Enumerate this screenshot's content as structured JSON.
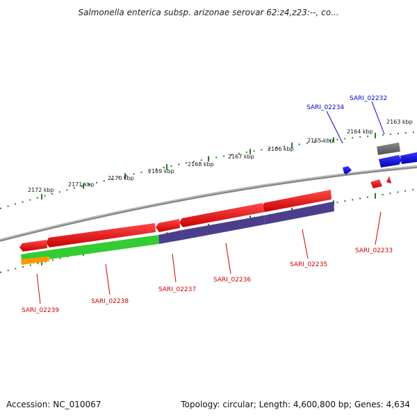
{
  "title": "Salmonella enterica subsp. arizonae serovar 62:z4,z23:--, co...",
  "footer": {
    "accession": "Accession: NC_010067",
    "summary": "Topology: circular; Length: 4,600,800 bp; Genes: 4,634"
  },
  "ticks": [
    "2163 kbp",
    "2164 kbp",
    "2165 kbp",
    "2166 kbp",
    "2167 kbp",
    "2168 kbp",
    "2169 kbp",
    "2170 kbp",
    "2171 kbp",
    "2172 kbp"
  ],
  "genes": [
    {
      "name": "SARI_02232",
      "color": "#0000cc"
    },
    {
      "name": "SARI_02234",
      "color": "#0000cc"
    },
    {
      "name": "SARI_02233",
      "color": "#cc0000"
    },
    {
      "name": "SARI_02235",
      "color": "#cc0000"
    },
    {
      "name": "SARI_02236",
      "color": "#cc0000"
    },
    {
      "name": "SARI_02237",
      "color": "#cc0000"
    },
    {
      "name": "SARI_02238",
      "color": "#cc0000"
    },
    {
      "name": "SARI_02239",
      "color": "#cc0000"
    }
  ],
  "colors": {
    "backbone": "#888888",
    "forward_strand": "#0000ee",
    "reverse_strand": "#ee0000",
    "pseudo": "#666666",
    "cog_green": "#33cc33",
    "cog_purple": "#4b3f8c",
    "cog_orange": "#ff9900",
    "tick_green": "#2a7a2a"
  }
}
